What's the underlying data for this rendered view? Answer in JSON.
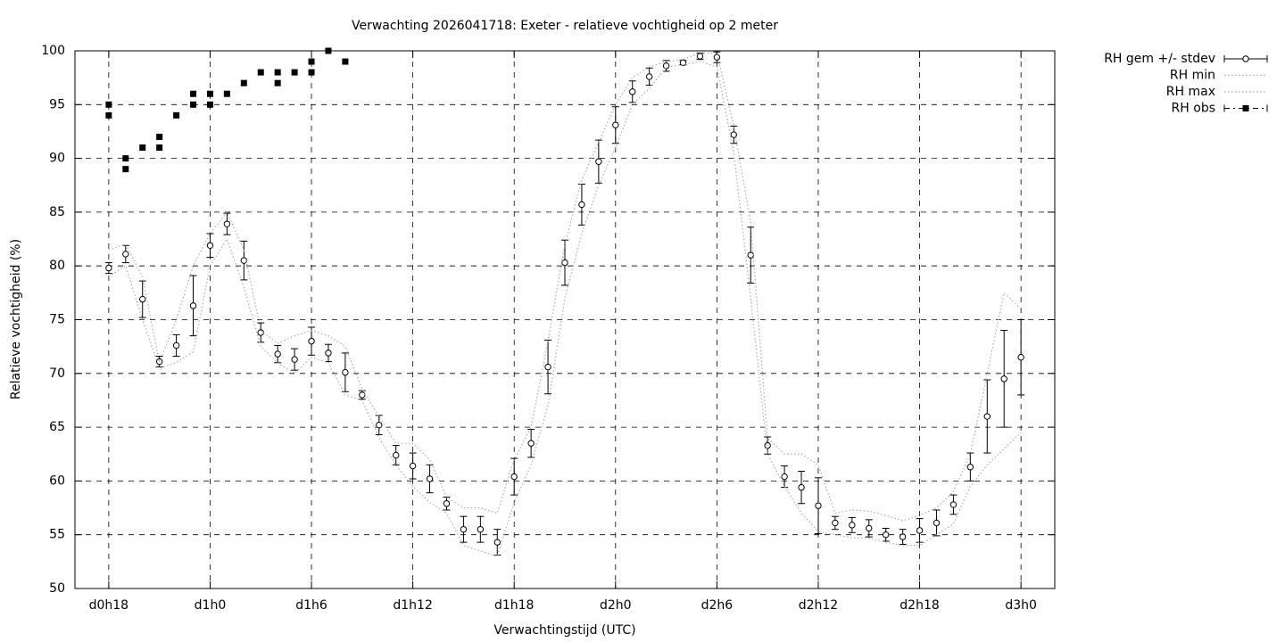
{
  "chart_data": {
    "type": "line",
    "title": "Verwachting 2026041718: Exeter - relatieve vochtigheid op 2 meter",
    "xlabel": "Verwachtingstijd (UTC)",
    "ylabel": "Relatieve vochtigheid (%)",
    "xlim": [
      16,
      74
    ],
    "ylim": [
      50,
      100
    ],
    "xticks": [
      {
        "value": 18,
        "label": "d0h18"
      },
      {
        "value": 24,
        "label": "d1h0"
      },
      {
        "value": 30,
        "label": "d1h6"
      },
      {
        "value": 36,
        "label": "d1h12"
      },
      {
        "value": 42,
        "label": "d1h18"
      },
      {
        "value": 48,
        "label": "d2h0"
      },
      {
        "value": 54,
        "label": "d2h6"
      },
      {
        "value": 60,
        "label": "d2h12"
      },
      {
        "value": 66,
        "label": "d2h18"
      },
      {
        "value": 72,
        "label": "d3h0"
      }
    ],
    "yticks": [
      50,
      55,
      60,
      65,
      70,
      75,
      80,
      85,
      90,
      95,
      100
    ],
    "grid": true,
    "legend": "outside-top-right",
    "x": [
      18,
      19,
      20,
      21,
      22,
      23,
      24,
      25,
      26,
      27,
      28,
      29,
      30,
      31,
      32,
      33,
      34,
      35,
      36,
      37,
      38,
      39,
      40,
      41,
      42,
      43,
      44,
      45,
      46,
      47,
      48,
      49,
      50,
      51,
      52,
      53,
      54,
      55,
      56,
      57,
      58,
      59,
      60,
      61,
      62,
      63,
      64,
      65,
      66,
      67,
      68,
      69,
      70,
      71,
      72
    ],
    "series": [
      {
        "name": "RH gem +/- stdev",
        "style": "errorbars",
        "color": "#000000",
        "values": [
          79.8,
          81.1,
          76.9,
          71.1,
          72.6,
          76.3,
          81.9,
          83.9,
          80.5,
          73.8,
          71.8,
          71.3,
          73.0,
          71.9,
          70.1,
          68.0,
          65.2,
          62.4,
          61.4,
          60.2,
          57.9,
          55.5,
          55.5,
          54.3,
          60.4,
          63.5,
          70.6,
          80.3,
          85.7,
          89.7,
          93.1,
          96.2,
          97.6,
          98.6,
          98.9,
          99.5,
          99.4,
          92.2,
          81.0,
          63.3,
          60.4,
          59.4,
          57.7,
          56.1,
          55.9,
          55.6,
          55.0,
          54.8,
          55.4,
          56.1,
          57.8,
          61.3,
          66.0,
          69.5,
          71.5
        ],
        "errors": [
          0.5,
          0.8,
          1.7,
          0.5,
          1.0,
          2.8,
          1.1,
          1.0,
          1.8,
          0.9,
          0.8,
          1.0,
          1.3,
          0.8,
          1.8,
          0.4,
          0.9,
          0.9,
          1.2,
          1.3,
          0.6,
          1.2,
          1.2,
          1.2,
          1.7,
          1.3,
          2.5,
          2.1,
          1.9,
          2.0,
          1.7,
          1.0,
          0.8,
          0.5,
          0.2,
          0.3,
          0.5,
          0.8,
          2.6,
          0.8,
          1.0,
          1.5,
          2.6,
          0.6,
          0.7,
          0.8,
          0.6,
          0.7,
          1.1,
          1.2,
          0.9,
          1.3,
          3.4,
          4.5,
          3.5
        ]
      },
      {
        "name": "RH min",
        "style": "dotted",
        "color": "#aaaaaa",
        "values": [
          79,
          80,
          75,
          70.5,
          71,
          72,
          80,
          82.5,
          78,
          72.5,
          71,
          70,
          71.5,
          71,
          68,
          67.5,
          64,
          61.5,
          59.5,
          58,
          57,
          54,
          53.5,
          53,
          58,
          61.5,
          67,
          77,
          83,
          87.5,
          91,
          95,
          96.5,
          98.5,
          98.7,
          99,
          98.5,
          90.5,
          77,
          62.5,
          59.5,
          57,
          55.3,
          55,
          54.7,
          54.7,
          54.3,
          54,
          54,
          55,
          56,
          59.5,
          61.5,
          63,
          64.5
        ]
      },
      {
        "name": "RH max",
        "style": "dotted",
        "color": "#aaaaaa",
        "values": [
          81.5,
          82,
          79,
          71,
          75,
          80,
          83,
          85,
          81.5,
          74,
          72.8,
          73.5,
          74,
          73.5,
          72.5,
          68.5,
          66,
          63.5,
          63.5,
          62,
          58.5,
          57.5,
          57.5,
          57,
          62,
          65,
          73,
          82,
          88,
          91.5,
          95,
          97.5,
          98.5,
          99,
          99.2,
          99.8,
          99.8,
          93,
          84,
          64,
          62.5,
          62.5,
          61.5,
          57,
          57.3,
          57.2,
          56.8,
          56.3,
          56.8,
          57.5,
          59,
          62.5,
          70,
          77.5,
          76
        ]
      },
      {
        "name": "RH obs",
        "style": "points",
        "color": "#000000",
        "x": [
          18,
          18,
          19,
          19,
          20,
          21,
          21,
          22,
          23,
          23,
          24,
          24,
          25,
          26,
          27,
          28,
          28,
          29,
          30,
          30,
          31,
          32
        ],
        "values": [
          95,
          94,
          90,
          89,
          91,
          92,
          91,
          94,
          96,
          95,
          96,
          95,
          96,
          97,
          98,
          98,
          97,
          98,
          99,
          98,
          100,
          99
        ]
      }
    ]
  }
}
